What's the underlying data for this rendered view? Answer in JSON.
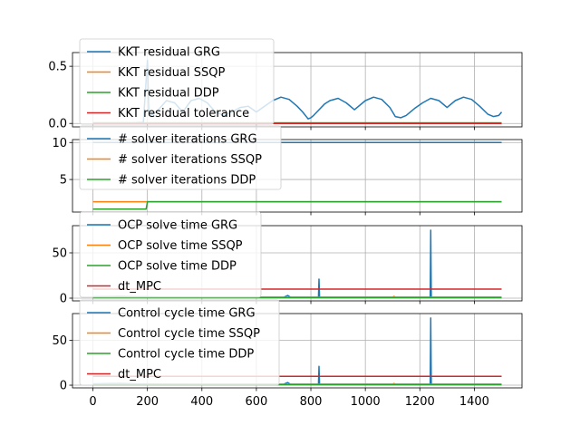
{
  "chart_data": [
    {
      "type": "line",
      "xlim": [
        -75,
        1575
      ],
      "ylim": [
        -0.03,
        0.62
      ],
      "yticks": [
        0.0,
        0.5
      ],
      "ytick_labels": [
        "0.0",
        "0.5"
      ],
      "xticks": [
        0,
        200,
        400,
        600,
        800,
        1000,
        1200,
        1400
      ],
      "grid": true,
      "legend_loc": "upper-left",
      "series": [
        {
          "name": "KKT residual GRG",
          "color": "#1f77b4",
          "x": [
            0,
            150,
            185,
            200,
            205,
            215,
            240,
            270,
            300,
            330,
            360,
            390,
            420,
            450,
            480,
            510,
            540,
            570,
            600,
            630,
            660,
            690,
            720,
            750,
            770,
            790,
            800,
            810,
            830,
            850,
            870,
            900,
            930,
            960,
            1000,
            1030,
            1060,
            1090,
            1110,
            1130,
            1150,
            1180,
            1210,
            1240,
            1270,
            1300,
            1330,
            1360,
            1390,
            1420,
            1450,
            1470,
            1490,
            1500
          ],
          "y": [
            0.005,
            0.005,
            0.01,
            0.55,
            0.1,
            0.07,
            0.12,
            0.2,
            0.18,
            0.1,
            0.2,
            0.22,
            0.18,
            0.1,
            0.07,
            0.1,
            0.14,
            0.15,
            0.1,
            0.15,
            0.2,
            0.23,
            0.21,
            0.15,
            0.1,
            0.04,
            0.05,
            0.07,
            0.12,
            0.17,
            0.2,
            0.22,
            0.18,
            0.12,
            0.2,
            0.23,
            0.21,
            0.14,
            0.06,
            0.05,
            0.07,
            0.13,
            0.18,
            0.22,
            0.2,
            0.14,
            0.2,
            0.23,
            0.21,
            0.15,
            0.08,
            0.06,
            0.07,
            0.1
          ]
        },
        {
          "name": "KKT residual SSQP",
          "color": "#ff7f0e",
          "x": [
            0,
            1500
          ],
          "y": [
            0.005,
            0.005
          ]
        },
        {
          "name": "KKT residual DDP",
          "color": "#2ca02c",
          "x": [
            0,
            1500
          ],
          "y": [
            0.005,
            0.005
          ]
        },
        {
          "name": "KKT residual tolerance",
          "color": "#d62728",
          "x": [
            0,
            1500
          ],
          "y": [
            0.0,
            0.0
          ]
        }
      ]
    },
    {
      "type": "line",
      "xlim": [
        -75,
        1575
      ],
      "ylim": [
        0.6,
        10.4
      ],
      "yticks": [
        5,
        10
      ],
      "ytick_labels": [
        "5",
        "10"
      ],
      "xticks": [
        0,
        200,
        400,
        600,
        800,
        1000,
        1200,
        1400
      ],
      "grid": true,
      "legend_loc": "upper-left",
      "series": [
        {
          "name": "# solver iterations GRG",
          "color": "#1f77b4",
          "x": [
            0,
            1500
          ],
          "y": [
            10,
            10
          ]
        },
        {
          "name": "# solver iterations SSQP",
          "color": "#ff7f0e",
          "x": [
            0,
            1500
          ],
          "y": [
            2,
            2
          ]
        },
        {
          "name": "# solver iterations DDP",
          "color": "#2ca02c",
          "x": [
            0,
            195,
            200,
            1500
          ],
          "y": [
            1,
            1,
            2,
            2
          ]
        }
      ]
    },
    {
      "type": "line",
      "xlim": [
        -75,
        1575
      ],
      "ylim": [
        -3,
        80
      ],
      "yticks": [
        0,
        50
      ],
      "ytick_labels": [
        "0",
        "50"
      ],
      "xticks": [
        0,
        200,
        400,
        600,
        800,
        1000,
        1200,
        1400
      ],
      "grid": true,
      "legend_loc": "upper-left",
      "series": [
        {
          "name": "OCP solve time GRG",
          "color": "#1f77b4",
          "x": [
            0,
            100,
            150,
            200,
            300,
            400,
            500,
            600,
            700,
            715,
            720,
            725,
            800,
            828,
            830,
            832,
            900,
            1000,
            1100,
            1200,
            1238,
            1240,
            1242,
            1300,
            1400,
            1500
          ],
          "y": [
            1.5,
            2,
            1.5,
            1.5,
            1,
            1,
            1,
            1,
            1,
            3,
            2,
            1,
            1,
            1,
            21,
            1,
            1,
            1,
            1,
            1,
            1,
            75,
            1,
            1,
            1,
            1
          ]
        },
        {
          "name": "OCP solve time SSQP",
          "color": "#ff7f0e",
          "x": [
            0,
            100,
            200,
            300,
            400,
            500,
            600,
            700,
            800,
            900,
            1000,
            1100,
            1105,
            1110,
            1200,
            1300,
            1400,
            1500
          ],
          "y": [
            1.2,
            1.5,
            1.2,
            1.2,
            1,
            1,
            1,
            1,
            1,
            1,
            1,
            1,
            2,
            1,
            1,
            1,
            1,
            1
          ]
        },
        {
          "name": "OCP solve time DDP",
          "color": "#2ca02c",
          "x": [
            0,
            100,
            200,
            300,
            400,
            500,
            600,
            700,
            800,
            900,
            1000,
            1100,
            1200,
            1300,
            1400,
            1500
          ],
          "y": [
            0.5,
            0.5,
            0.5,
            0.5,
            0.5,
            0.5,
            0.5,
            0.5,
            0.5,
            0.5,
            0.5,
            0.5,
            0.5,
            0.5,
            0.5,
            0.5
          ]
        },
        {
          "name": "dt_MPC",
          "color": "#d62728",
          "x": [
            0,
            1500
          ],
          "y": [
            10,
            10
          ]
        }
      ]
    },
    {
      "type": "line",
      "xlim": [
        -75,
        1575
      ],
      "ylim": [
        -3,
        80
      ],
      "yticks": [
        0,
        50
      ],
      "ytick_labels": [
        "0",
        "50"
      ],
      "xticks": [
        0,
        200,
        400,
        600,
        800,
        1000,
        1200,
        1400
      ],
      "xtick_labels": [
        "0",
        "200",
        "400",
        "600",
        "800",
        "1000",
        "1200",
        "1400"
      ],
      "grid": true,
      "legend_loc": "upper-left",
      "series": [
        {
          "name": "Control cycle time GRG",
          "color": "#1f77b4",
          "x": [
            0,
            100,
            150,
            200,
            300,
            400,
            500,
            600,
            700,
            715,
            720,
            725,
            800,
            828,
            830,
            832,
            900,
            1000,
            1100,
            1200,
            1238,
            1240,
            1242,
            1300,
            1400,
            1500
          ],
          "y": [
            1.5,
            2,
            1.5,
            1.5,
            1,
            1,
            1,
            1,
            1,
            3,
            2,
            1,
            1,
            1,
            21,
            1,
            1,
            1,
            1,
            1,
            1,
            75,
            1,
            1,
            1,
            1
          ]
        },
        {
          "name": "Control cycle time SSQP",
          "color": "#ff7f0e",
          "x": [
            0,
            100,
            200,
            300,
            400,
            500,
            600,
            700,
            800,
            900,
            1000,
            1100,
            1105,
            1110,
            1200,
            1300,
            1400,
            1500
          ],
          "y": [
            1.2,
            1.5,
            1.2,
            1.2,
            1,
            1,
            1,
            1,
            1,
            1,
            1,
            1,
            2,
            1,
            1,
            1,
            1,
            1
          ]
        },
        {
          "name": "Control cycle time DDP",
          "color": "#2ca02c",
          "x": [
            0,
            100,
            200,
            300,
            400,
            500,
            600,
            700,
            800,
            900,
            1000,
            1100,
            1200,
            1300,
            1400,
            1500
          ],
          "y": [
            0.5,
            0.5,
            0.5,
            0.5,
            0.5,
            0.5,
            0.5,
            0.5,
            0.5,
            0.5,
            0.5,
            0.5,
            0.5,
            0.5,
            0.5,
            0.5
          ]
        },
        {
          "name": "dt_MPC",
          "color": "#d62728",
          "x": [
            0,
            1500
          ],
          "y": [
            10,
            10
          ]
        }
      ]
    }
  ]
}
